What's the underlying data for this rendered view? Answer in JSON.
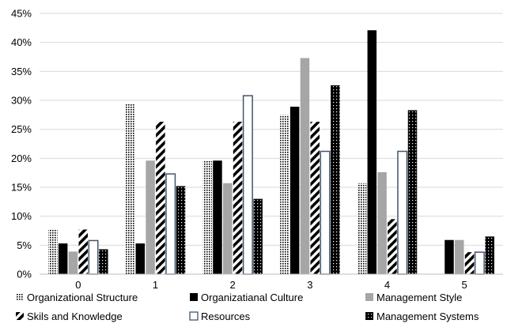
{
  "chart_data": {
    "type": "bar",
    "title": "",
    "xlabel": "",
    "ylabel": "",
    "ylim": [
      0,
      45
    ],
    "y_tick_step": 5,
    "y_tick_format": "percent",
    "grid": "horizontal",
    "legend_position": "bottom",
    "categories": [
      "0",
      "1",
      "2",
      "3",
      "4",
      "5"
    ],
    "series": [
      {
        "name": "Organizational Structure",
        "pattern": "dots",
        "color": "#000000",
        "values": [
          7.8,
          29.4,
          19.6,
          27.5,
          15.7,
          0
        ]
      },
      {
        "name": "Organizatianal Culture",
        "pattern": "solid-black",
        "color": "#000000",
        "values": [
          5.3,
          5.3,
          19.6,
          28.9,
          42.1,
          5.9
        ]
      },
      {
        "name": "Management Style",
        "pattern": "solid-gray",
        "color": "#a6a6a6",
        "values": [
          3.9,
          19.6,
          15.7,
          37.3,
          17.6,
          5.9
        ]
      },
      {
        "name": "Skils and Knowledge",
        "pattern": "diagonal-stripes",
        "color": "#000000",
        "values": [
          7.7,
          26.3,
          26.3,
          26.3,
          9.5,
          3.8
        ]
      },
      {
        "name": "Resources",
        "pattern": "outline-blue",
        "color": "#44546a",
        "values": [
          5.8,
          17.3,
          30.8,
          21.2,
          21.2,
          3.8
        ]
      },
      {
        "name": "Management Systems",
        "pattern": "checker",
        "color": "#000000",
        "values": [
          4.3,
          15.2,
          13.0,
          32.6,
          28.3,
          6.5
        ]
      }
    ]
  }
}
